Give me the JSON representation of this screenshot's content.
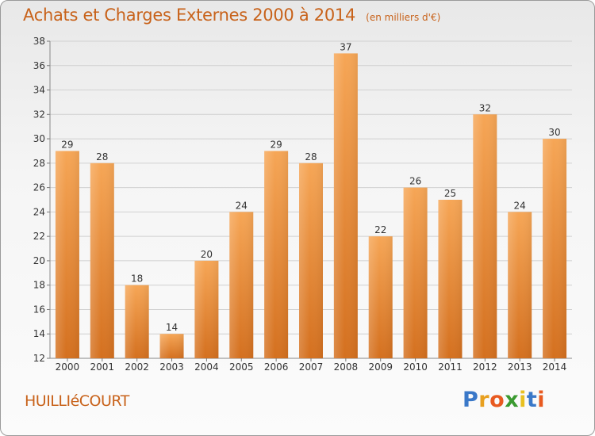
{
  "title": "Achats et Charges Externes 2000 à 2014",
  "subtitle": "(en milliers d'€)",
  "town": "HUILLIéCOURT",
  "logo": {
    "letters": [
      "P",
      "r",
      "o",
      "x",
      "i",
      "t",
      "i"
    ],
    "colors": [
      "#3a78c8",
      "#e8a020",
      "#e85a20",
      "#3a9a30",
      "#e8c020",
      "#3a78c8",
      "#e85a20"
    ]
  },
  "colors": {
    "accent": "#c8621a",
    "bar_top": "#f6a656",
    "bar_bottom": "#d4701f",
    "grid": "#d0d0d0"
  },
  "chart_data": {
    "type": "bar",
    "categories": [
      "2000",
      "2001",
      "2002",
      "2003",
      "2004",
      "2005",
      "2006",
      "2007",
      "2008",
      "2009",
      "2010",
      "2011",
      "2012",
      "2013",
      "2014"
    ],
    "values": [
      29,
      28,
      18,
      14,
      20,
      24,
      29,
      28,
      37,
      22,
      26,
      25,
      32,
      24,
      30
    ],
    "ylim": [
      12,
      38
    ],
    "yticks": [
      12,
      14,
      16,
      18,
      20,
      22,
      24,
      26,
      28,
      30,
      32,
      34,
      36,
      38
    ],
    "grid": true,
    "data_labels": true
  }
}
